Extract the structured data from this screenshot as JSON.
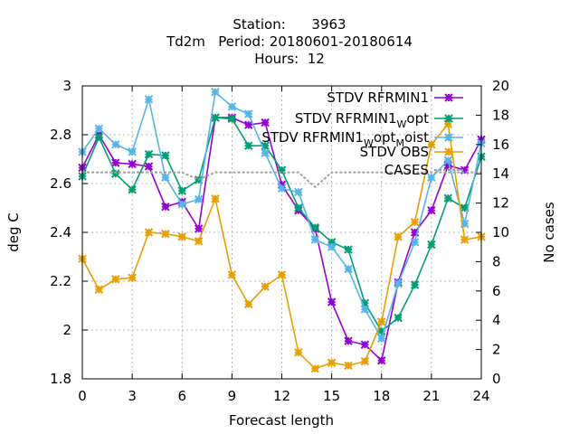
{
  "header": {
    "line1": "Station:      3963",
    "line2": "Td2m   Period: 20180601-20180614",
    "line3": "Hours:  12"
  },
  "chart_data": {
    "type": "line",
    "xlabel": "Forecast length",
    "ylabel": "deg C",
    "y2label": "No cases",
    "xlim": [
      0,
      24
    ],
    "ylim": [
      1.8,
      3.0
    ],
    "y2lim": [
      0,
      20
    ],
    "xticks": [
      "0",
      "3",
      "6",
      "9",
      "12",
      "15",
      "18",
      "21",
      "24"
    ],
    "yticks": [
      "1.8",
      "2",
      "2.2",
      "2.4",
      "2.6",
      "2.8",
      "3"
    ],
    "y2ticks": [
      "0",
      "2",
      "4",
      "6",
      "8",
      "10",
      "12",
      "14",
      "16",
      "18",
      "20"
    ],
    "grid": true,
    "legend_position": "top-right",
    "x": [
      0,
      1,
      2,
      3,
      4,
      5,
      6,
      7,
      8,
      9,
      10,
      11,
      12,
      13,
      14,
      15,
      16,
      17,
      18,
      19,
      20,
      21,
      22,
      23,
      24
    ],
    "series": [
      {
        "name": "STDV RFRMIN1",
        "label_main": "STDV RFRMIN1",
        "color": "#9400d3",
        "axis": "y1",
        "values": [
          2.665,
          2.8,
          2.685,
          2.68,
          2.67,
          2.505,
          2.525,
          2.415,
          2.87,
          2.87,
          2.84,
          2.85,
          2.595,
          2.49,
          2.415,
          2.115,
          1.955,
          1.94,
          1.875,
          2.195,
          2.4,
          2.49,
          2.675,
          2.655,
          2.78
        ]
      },
      {
        "name": "STDV RFRMIN1 W opt",
        "label_main": "STDV RFRMIN1",
        "label_sub": "W",
        "label_tail": "opt",
        "color": "#009e73",
        "axis": "y1",
        "values": [
          2.63,
          2.79,
          2.64,
          2.575,
          2.72,
          2.715,
          2.57,
          2.615,
          2.87,
          2.865,
          2.755,
          2.755,
          2.655,
          2.5,
          2.42,
          2.36,
          2.33,
          2.11,
          1.995,
          2.05,
          2.185,
          2.35,
          2.54,
          2.5,
          2.71
        ]
      },
      {
        "name": "STDV RFRMIN1 W opt M oist",
        "label_main": "STDV RFRMIN1",
        "label_sub": "W",
        "label_mid": "opt",
        "label_sub2": "M",
        "label_tail": "oist",
        "color": "#56b4e9",
        "axis": "y1",
        "values": [
          2.73,
          2.825,
          2.76,
          2.73,
          2.945,
          2.625,
          2.515,
          2.535,
          2.975,
          2.915,
          2.885,
          2.725,
          2.58,
          2.565,
          2.37,
          2.34,
          2.25,
          2.085,
          1.965,
          2.19,
          2.36,
          2.625,
          2.695,
          2.435,
          2.765
        ]
      },
      {
        "name": "STDV OBS",
        "label_main": "STDV OBS",
        "color": "#e69f00",
        "axis": "y2",
        "values": [
          8.2,
          6.1,
          6.8,
          6.9,
          10.0,
          9.9,
          9.7,
          9.4,
          12.3,
          7.1,
          5.1,
          6.3,
          7.1,
          1.8,
          0.7,
          1.1,
          0.9,
          1.2,
          3.9,
          9.7,
          10.7,
          16.0,
          17.4,
          9.5,
          9.7
        ]
      },
      {
        "name": "CASES",
        "label_main": "CASES",
        "color": "#a0a0a0",
        "axis": "y2",
        "style": "dashed",
        "values": [
          14.1,
          14.1,
          14.1,
          14.1,
          14.1,
          14.1,
          14.1,
          13.6,
          14.1,
          14.1,
          14.1,
          14.1,
          14.1,
          14.1,
          13.1,
          14.1,
          14.1,
          14.1,
          14.1,
          14.1,
          14.1,
          14.1,
          14.1,
          14.1,
          14.1
        ]
      }
    ]
  }
}
